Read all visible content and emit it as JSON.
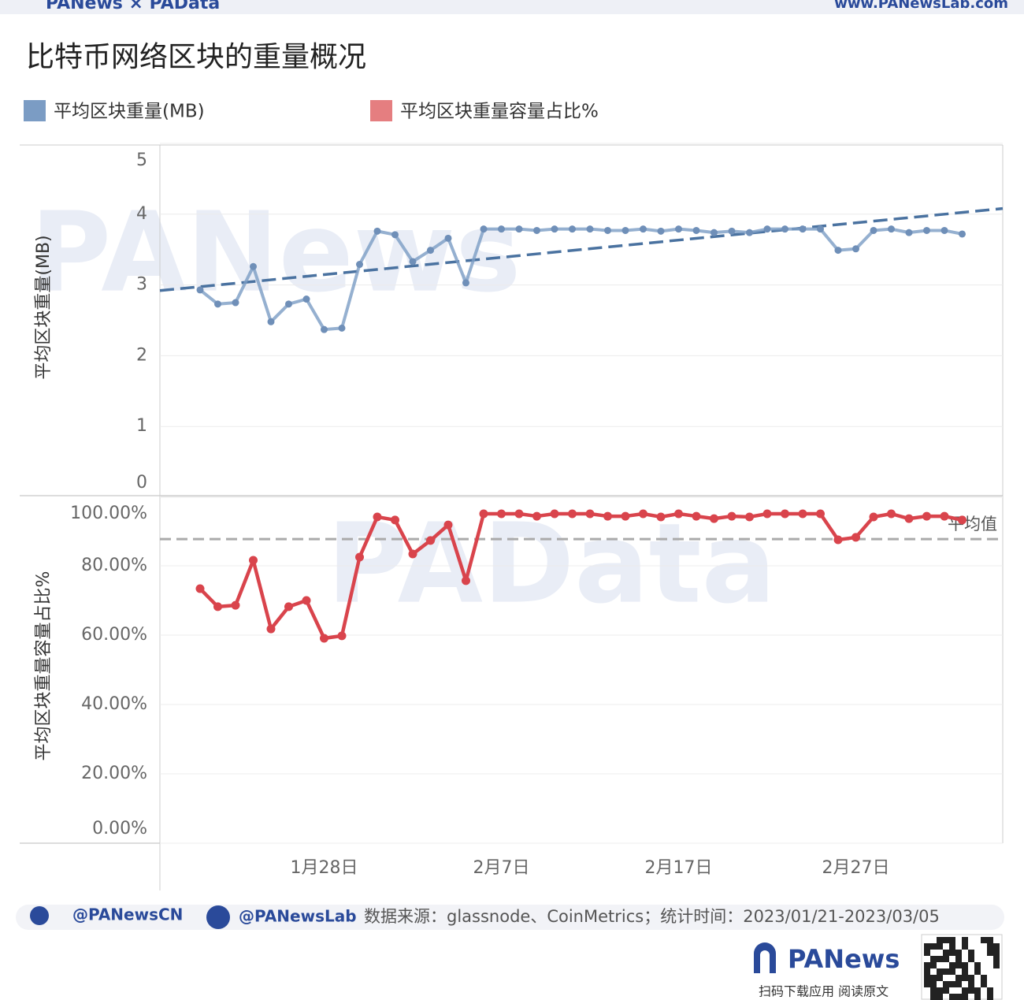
{
  "header": {
    "brand": "PANews × PAData",
    "site": "www.PANewsLab.com"
  },
  "title": "比特币网络区块的重量概况",
  "watermarks": [
    "PANews",
    "PAData"
  ],
  "chart_data": [
    {
      "type": "line",
      "ylabel": "平均区块重量(MB)",
      "ylim": [
        0,
        5
      ],
      "yticks": [
        0,
        1,
        2,
        3,
        4,
        5
      ],
      "grid": true,
      "series": [
        {
          "name": "平均区块重量(MB)",
          "color": "#7b9cc4",
          "values": [
            2.93,
            2.73,
            2.75,
            3.26,
            2.48,
            2.73,
            2.8,
            2.37,
            2.39,
            3.29,
            3.76,
            3.71,
            3.33,
            3.49,
            3.66,
            3.03,
            3.79,
            3.79,
            3.79,
            3.77,
            3.79,
            3.79,
            3.79,
            3.77,
            3.77,
            3.79,
            3.76,
            3.79,
            3.77,
            3.74,
            3.76,
            3.74,
            3.79,
            3.79,
            3.79,
            3.79,
            3.49,
            3.51,
            3.77,
            3.79,
            3.74,
            3.77,
            3.77,
            3.72
          ]
        }
      ],
      "trendline": {
        "color": "#4a72a0",
        "start": 2.92,
        "end": 4.08
      }
    },
    {
      "type": "line",
      "ylabel": "平均区块重量容量占比%",
      "ylim": [
        0,
        100
      ],
      "yticks": [
        {
          "value": 0,
          "label": "0.00%"
        },
        {
          "value": 20,
          "label": "20.00%"
        },
        {
          "value": 40,
          "label": "40.00%"
        },
        {
          "value": 60,
          "label": "60.00%"
        },
        {
          "value": 80,
          "label": "80.00%"
        },
        {
          "value": 100,
          "label": "100.00%"
        }
      ],
      "grid": true,
      "categories": [
        null,
        null,
        null,
        null,
        null,
        null,
        null,
        "1月28日",
        null,
        null,
        null,
        null,
        null,
        null,
        null,
        null,
        null,
        "2月7日",
        null,
        null,
        null,
        null,
        null,
        null,
        null,
        null,
        null,
        "2月17日",
        null,
        null,
        null,
        null,
        null,
        null,
        null,
        null,
        null,
        "2月27日",
        null,
        null,
        null,
        null,
        null,
        null
      ],
      "series": [
        {
          "name": "平均区块重量容量占比%",
          "color": "#d9444c",
          "values": [
            73.4,
            68.2,
            68.6,
            81.6,
            61.8,
            68.2,
            70.0,
            59.1,
            59.8,
            82.5,
            94.1,
            93.2,
            83.4,
            87.3,
            91.8,
            75.7,
            95,
            95,
            95,
            94.3,
            95,
            95,
            95,
            94.3,
            94.3,
            95,
            94.1,
            95,
            94.3,
            93.6,
            94.3,
            94.1,
            95,
            95,
            95,
            95,
            87.5,
            88.2,
            94.1,
            95,
            93.6,
            94.3,
            94.3,
            93.2
          ]
        }
      ],
      "reference_line": {
        "label": "平均值",
        "value": 87.7,
        "color": "#aaaaaa"
      }
    }
  ],
  "footer": {
    "twitter": "@PANewsCN",
    "facebook": "@PANewsLab",
    "source": "数据来源：glassnode、CoinMetrics；统计时间：2023/01/21-2023/03/05",
    "logo": "PANews",
    "qr_caption": "扫码下载应用  阅读原文"
  }
}
